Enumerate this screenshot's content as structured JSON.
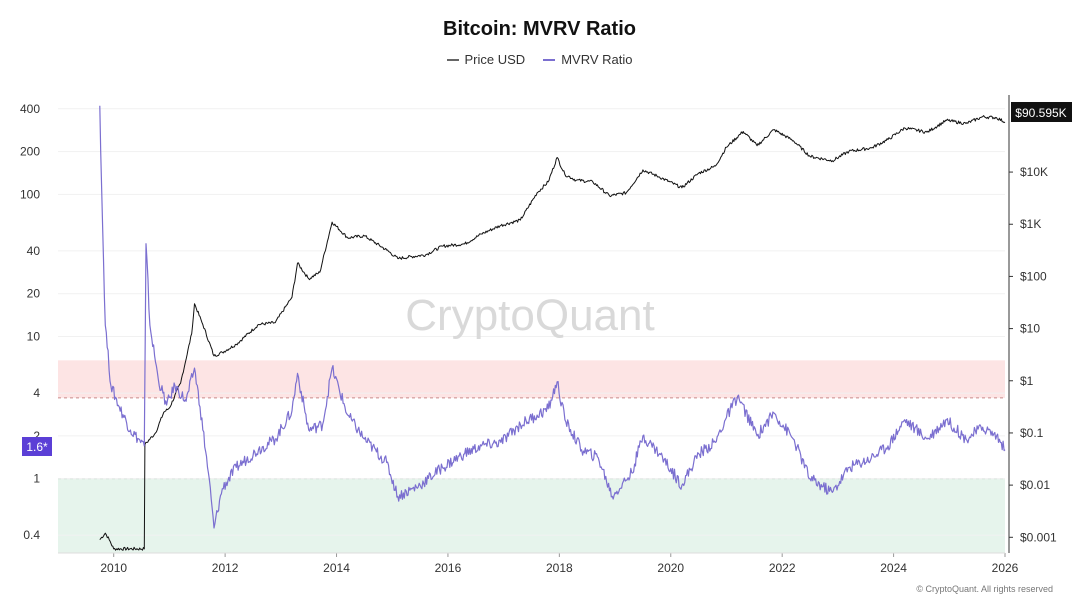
{
  "title": "Bitcoin: MVRV Ratio",
  "legend": [
    {
      "label": "Price USD",
      "color": "#666666"
    },
    {
      "label": "MVRV Ratio",
      "color": "#7b6fd0"
    }
  ],
  "watermark": "CryptoQuant",
  "copyright": "© CryptoQuant. All rights reserved",
  "current_mvrv_label": "1.6*",
  "current_price_label": "$90.595K",
  "colors": {
    "price_line": "#111111",
    "mvrv_line": "#7b6fd0",
    "overvalued_band": "#fde4e4",
    "undervalued_band": "#e6f4ec",
    "mvrv_badge": "#5b3fd6",
    "price_badge": "#111111"
  },
  "chart_data": {
    "type": "line",
    "title": "Bitcoin: MVRV Ratio",
    "x_ticks": [
      "2010",
      "2012",
      "2014",
      "2016",
      "2018",
      "2020",
      "2022",
      "2024",
      "2026"
    ],
    "x_range": [
      2009.0,
      2026.0
    ],
    "left_axis": {
      "scale": "log",
      "range": [
        0.3,
        500
      ],
      "ticks": [
        0.4,
        1,
        2,
        4,
        10,
        20,
        40,
        100,
        200,
        400
      ],
      "tick_labels": [
        "0.4",
        "1",
        "2",
        "4",
        "10",
        "20",
        "40",
        "100",
        "200",
        "400"
      ]
    },
    "right_axis": {
      "scale": "log",
      "range": [
        0.0005,
        300000
      ],
      "ticks": [
        0.001,
        0.01,
        0.1,
        1,
        10,
        100,
        1000,
        10000
      ],
      "tick_labels": [
        "$0.001",
        "$0.01",
        "$0.1",
        "$1",
        "$10",
        "$100",
        "$1K",
        "$10K"
      ]
    },
    "bands": [
      {
        "name": "overvalued",
        "from": 3.7,
        "to": 6.8,
        "color": "#fde4e4",
        "threshold_line": 3.7
      },
      {
        "name": "undervalued",
        "from": 0.3,
        "to": 1.0,
        "color": "#e6f4ec",
        "threshold_line": 1.0
      }
    ],
    "series": [
      {
        "name": "Price USD",
        "axis": "right",
        "color": "#111111",
        "points": [
          [
            2009.75,
            0.0009
          ],
          [
            2009.85,
            0.0012
          ],
          [
            2009.92,
            0.0009
          ],
          [
            2010.0,
            0.0006
          ],
          [
            2010.55,
            0.0006
          ],
          [
            2010.56,
            0.06
          ],
          [
            2010.75,
            0.1
          ],
          [
            2010.9,
            0.25
          ],
          [
            2011.0,
            0.3
          ],
          [
            2011.2,
            0.9
          ],
          [
            2011.4,
            8
          ],
          [
            2011.45,
            30
          ],
          [
            2011.6,
            12
          ],
          [
            2011.8,
            3
          ],
          [
            2011.95,
            3.5
          ],
          [
            2012.2,
            5
          ],
          [
            2012.6,
            12
          ],
          [
            2012.9,
            13
          ],
          [
            2013.2,
            40
          ],
          [
            2013.3,
            180
          ],
          [
            2013.5,
            90
          ],
          [
            2013.7,
            120
          ],
          [
            2013.92,
            1100
          ],
          [
            2014.2,
            550
          ],
          [
            2014.5,
            600
          ],
          [
            2014.9,
            320
          ],
          [
            2015.1,
            220
          ],
          [
            2015.6,
            260
          ],
          [
            2015.9,
            380
          ],
          [
            2016.3,
            420
          ],
          [
            2016.6,
            650
          ],
          [
            2016.95,
            950
          ],
          [
            2017.3,
            1200
          ],
          [
            2017.6,
            4000
          ],
          [
            2017.8,
            6500
          ],
          [
            2017.96,
            19000
          ],
          [
            2018.1,
            9000
          ],
          [
            2018.3,
            7000
          ],
          [
            2018.6,
            6500
          ],
          [
            2018.9,
            3500
          ],
          [
            2019.2,
            4000
          ],
          [
            2019.5,
            11000
          ],
          [
            2019.8,
            8000
          ],
          [
            2020.2,
            5000
          ],
          [
            2020.5,
            9500
          ],
          [
            2020.8,
            13000
          ],
          [
            2021.0,
            30000
          ],
          [
            2021.3,
            60000
          ],
          [
            2021.55,
            32000
          ],
          [
            2021.85,
            65000
          ],
          [
            2022.2,
            40000
          ],
          [
            2022.5,
            20000
          ],
          [
            2022.9,
            16500
          ],
          [
            2023.2,
            25000
          ],
          [
            2023.6,
            29000
          ],
          [
            2023.9,
            42000
          ],
          [
            2024.2,
            70000
          ],
          [
            2024.6,
            58000
          ],
          [
            2024.95,
            98000
          ],
          [
            2025.3,
            85000
          ],
          [
            2025.6,
            115000
          ],
          [
            2025.85,
            110000
          ],
          [
            2026.0,
            90595
          ]
        ]
      },
      {
        "name": "MVRV Ratio",
        "axis": "left",
        "color": "#7b6fd0",
        "points": [
          [
            2009.75,
            420
          ],
          [
            2009.8,
            60
          ],
          [
            2009.85,
            12
          ],
          [
            2009.95,
            4.5
          ],
          [
            2010.1,
            3.2
          ],
          [
            2010.3,
            2.2
          ],
          [
            2010.55,
            1.7
          ],
          [
            2010.58,
            45
          ],
          [
            2010.65,
            12
          ],
          [
            2010.8,
            5
          ],
          [
            2010.95,
            3.3
          ],
          [
            2011.1,
            4.5
          ],
          [
            2011.3,
            3.5
          ],
          [
            2011.45,
            6
          ],
          [
            2011.55,
            3.2
          ],
          [
            2011.7,
            1.1
          ],
          [
            2011.8,
            0.45
          ],
          [
            2011.95,
            0.85
          ],
          [
            2012.2,
            1.2
          ],
          [
            2012.6,
            1.6
          ],
          [
            2012.9,
            1.9
          ],
          [
            2013.2,
            3.0
          ],
          [
            2013.3,
            5.5
          ],
          [
            2013.5,
            2.2
          ],
          [
            2013.75,
            2.4
          ],
          [
            2013.92,
            6.0
          ],
          [
            2014.2,
            2.8
          ],
          [
            2014.5,
            1.9
          ],
          [
            2014.9,
            1.3
          ],
          [
            2015.1,
            0.75
          ],
          [
            2015.5,
            0.9
          ],
          [
            2015.9,
            1.2
          ],
          [
            2016.3,
            1.5
          ],
          [
            2016.6,
            1.7
          ],
          [
            2016.95,
            1.8
          ],
          [
            2017.3,
            2.4
          ],
          [
            2017.6,
            2.8
          ],
          [
            2017.8,
            3.1
          ],
          [
            2017.96,
            4.8
          ],
          [
            2018.1,
            2.6
          ],
          [
            2018.4,
            1.6
          ],
          [
            2018.7,
            1.4
          ],
          [
            2018.95,
            0.75
          ],
          [
            2019.3,
            1.1
          ],
          [
            2019.5,
            2.0
          ],
          [
            2019.8,
            1.5
          ],
          [
            2020.2,
            0.9
          ],
          [
            2020.5,
            1.5
          ],
          [
            2020.8,
            1.8
          ],
          [
            2021.0,
            2.7
          ],
          [
            2021.2,
            3.8
          ],
          [
            2021.55,
            2.0
          ],
          [
            2021.85,
            2.9
          ],
          [
            2022.2,
            1.9
          ],
          [
            2022.5,
            1.0
          ],
          [
            2022.9,
            0.8
          ],
          [
            2023.2,
            1.2
          ],
          [
            2023.6,
            1.4
          ],
          [
            2023.9,
            1.7
          ],
          [
            2024.2,
            2.6
          ],
          [
            2024.6,
            1.9
          ],
          [
            2024.95,
            2.6
          ],
          [
            2025.3,
            1.9
          ],
          [
            2025.6,
            2.3
          ],
          [
            2025.85,
            2.0
          ],
          [
            2026.0,
            1.6
          ]
        ]
      }
    ]
  }
}
